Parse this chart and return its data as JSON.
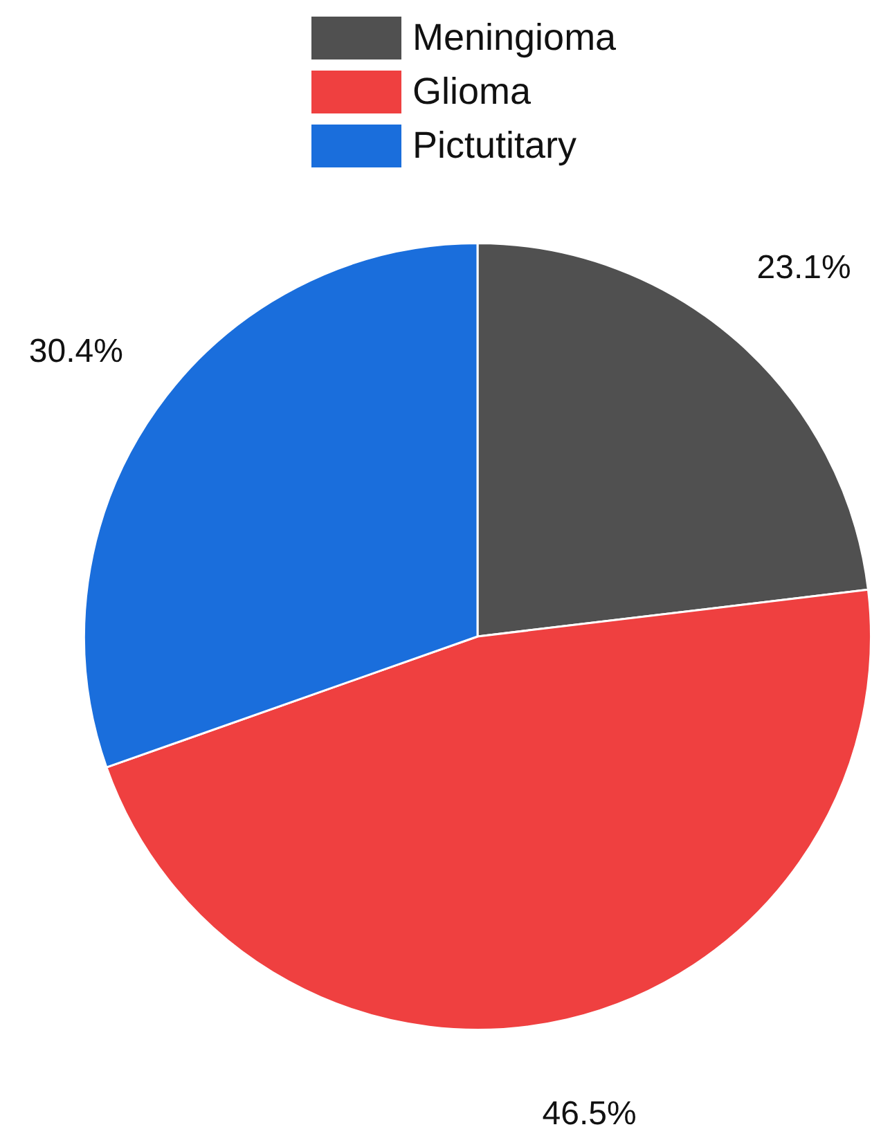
{
  "chart_data": {
    "type": "pie",
    "categories": [
      "Meningioma",
      "Glioma",
      "Pictutitary"
    ],
    "values": [
      23.1,
      46.5,
      30.4
    ],
    "colors": [
      "#505050",
      "#ef4040",
      "#1a6edc"
    ],
    "value_labels": [
      "23.1%",
      "46.5%",
      "30.4%"
    ],
    "legend": "top"
  }
}
